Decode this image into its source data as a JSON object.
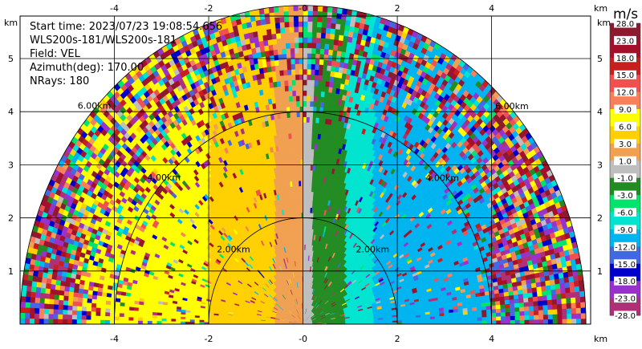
{
  "info": {
    "start_time": "Start time: 2023/07/23 19:08:54.656",
    "instrument": "WLS200s-181/WLS200s-181",
    "field": "Field: VEL",
    "azimuth": "Azimuth(deg): 170.00",
    "nrays": "NRays: 180"
  },
  "chart_data": {
    "type": "heatmap",
    "title": "",
    "xlabel": "km",
    "ylabel": "km",
    "x_ticks": [
      "-4",
      "-2",
      "-0",
      "2",
      "4"
    ],
    "x_tick_values": [
      -4,
      -2,
      0,
      2,
      4
    ],
    "y_ticks": [
      "1",
      "2",
      "3",
      "4",
      "5"
    ],
    "y_tick_values": [
      1,
      2,
      3,
      4,
      5
    ],
    "xlim": [
      -6.0,
      6.1
    ],
    "ylim": [
      0,
      5.8
    ],
    "grid": true,
    "range_rings": [
      {
        "radius_km": 2,
        "label": "2.00km"
      },
      {
        "radius_km": 4,
        "label": "4.00km"
      },
      {
        "radius_km": 6,
        "label": "6.00km"
      }
    ],
    "max_range_km": 6.0,
    "colorbar": {
      "unit": "m/s",
      "tick_labels": [
        "28.0",
        "23.0",
        "18.0",
        "15.0",
        "12.0",
        "9.0",
        "6.0",
        "3.0",
        "1.0",
        "-1.0",
        "-3.0",
        "-6.0",
        "-9.0",
        "-12.0",
        "-15.0",
        "-18.0",
        "-23.0",
        "-28.0"
      ],
      "bins": [
        {
          "low": 23,
          "high": 28,
          "color": "#8b1a2e"
        },
        {
          "low": 18,
          "high": 23,
          "color": "#a4102c"
        },
        {
          "low": 15,
          "high": 18,
          "color": "#c81e1e"
        },
        {
          "low": 12,
          "high": 15,
          "color": "#f05050"
        },
        {
          "low": 9,
          "high": 12,
          "color": "#f77f5a"
        },
        {
          "low": 6,
          "high": 9,
          "color": "#ffff00"
        },
        {
          "low": 3,
          "high": 6,
          "color": "#ffd000"
        },
        {
          "low": 1,
          "high": 3,
          "color": "#f0a050"
        },
        {
          "low": -1,
          "high": 1,
          "color": "#bebebe"
        },
        {
          "low": -3,
          "high": -1,
          "color": "#228b22"
        },
        {
          "low": -6,
          "high": -3,
          "color": "#00e46c"
        },
        {
          "low": -9,
          "high": -6,
          "color": "#00e4d0"
        },
        {
          "low": -12,
          "high": -9,
          "color": "#00b4f0"
        },
        {
          "low": -15,
          "high": -12,
          "color": "#4169e1"
        },
        {
          "low": -18,
          "high": -15,
          "color": "#0000cd"
        },
        {
          "low": -23,
          "high": -18,
          "color": "#9932cc"
        },
        {
          "low": -28,
          "high": -23,
          "color": "#b03078"
        }
      ]
    },
    "velocity_field_sectors": [
      {
        "x_from": -6.0,
        "x_to": -4.8,
        "value": 12.5,
        "speckle": 0.75
      },
      {
        "x_from": -4.8,
        "x_to": -2.0,
        "value": 8.0,
        "speckle": 0.15
      },
      {
        "x_from": -2.0,
        "x_to": -0.6,
        "value": 5.0,
        "speckle": 0.05
      },
      {
        "x_from": -0.6,
        "x_to": 0.0,
        "value": 2.0,
        "speckle": 0.03
      },
      {
        "x_from": 0.0,
        "x_to": 0.2,
        "value": 0.0,
        "speckle": 0.03
      },
      {
        "x_from": 0.2,
        "x_to": 0.9,
        "value": -2.0,
        "speckle": 0.05
      },
      {
        "x_from": 0.9,
        "x_to": 1.5,
        "value": -7.5,
        "speckle": 0.05
      },
      {
        "x_from": 1.5,
        "x_to": 4.0,
        "value": -10.5,
        "speckle": 0.12
      },
      {
        "x_from": 4.0,
        "x_to": 6.1,
        "value": -13.0,
        "speckle": 0.7
      }
    ]
  }
}
